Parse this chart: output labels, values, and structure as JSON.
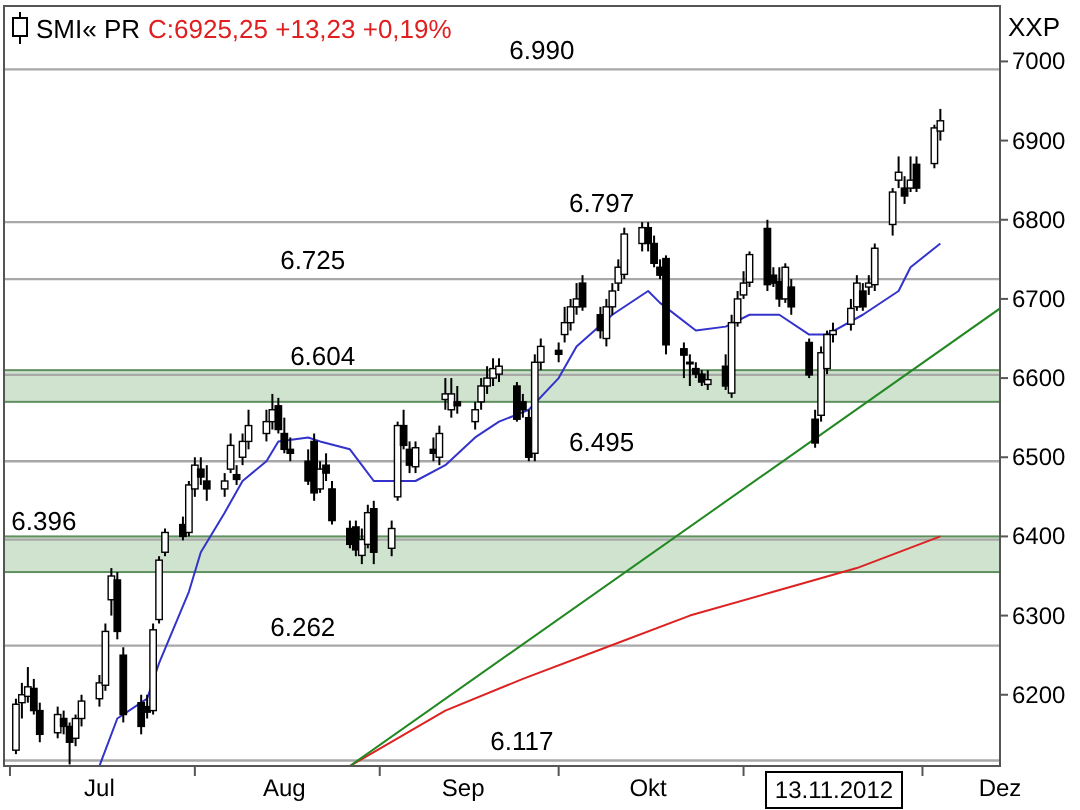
{
  "chart_data": {
    "type": "candlestick",
    "title": "SMI« PR",
    "subtitle": "C:6925,25 +13,23 +0,19%",
    "ylabel": "XXP",
    "xlim": [
      "2012-06-30",
      "2012-12-14"
    ],
    "xticks": [
      {
        "value": "2012-07-01",
        "label": null
      },
      {
        "value": "2012-07-16",
        "label": "Jul"
      },
      {
        "value": "2012-08-01",
        "label": null
      },
      {
        "value": "2012-08-16",
        "label": "Aug"
      },
      {
        "value": "2012-09-01",
        "label": null
      },
      {
        "value": "2012-09-15",
        "label": "Sep"
      },
      {
        "value": "2012-10-01",
        "label": null
      },
      {
        "value": "2012-10-16",
        "label": "Okt"
      },
      {
        "value": "2012-11-01",
        "label": null
      },
      {
        "value": "2012-12-01",
        "label": null
      },
      {
        "value": "2012-12-14",
        "label": "Dez"
      }
    ],
    "ylim": [
      6110,
      7070
    ],
    "yticks": [
      6200,
      6300,
      6400,
      6500,
      6600,
      6700,
      6800,
      6900,
      7000
    ],
    "x": [
      "2012-07-02",
      "2012-07-03",
      "2012-07-04",
      "2012-07-05",
      "2012-07-06",
      "2012-07-09",
      "2012-07-10",
      "2012-07-11",
      "2012-07-12",
      "2012-07-13",
      "2012-07-16",
      "2012-07-17",
      "2012-07-18",
      "2012-07-19",
      "2012-07-20",
      "2012-07-23",
      "2012-07-24",
      "2012-07-25",
      "2012-07-26",
      "2012-07-27",
      "2012-07-30",
      "2012-07-31",
      "2012-08-01",
      "2012-08-02",
      "2012-08-03",
      "2012-08-06",
      "2012-08-07",
      "2012-08-08",
      "2012-08-09",
      "2012-08-10",
      "2012-08-13",
      "2012-08-14",
      "2012-08-15",
      "2012-08-16",
      "2012-08-17",
      "2012-08-20",
      "2012-08-21",
      "2012-08-22",
      "2012-08-23",
      "2012-08-24",
      "2012-08-27",
      "2012-08-28",
      "2012-08-29",
      "2012-08-30",
      "2012-08-31",
      "2012-09-03",
      "2012-09-04",
      "2012-09-05",
      "2012-09-06",
      "2012-09-07",
      "2012-09-10",
      "2012-09-11",
      "2012-09-12",
      "2012-09-13",
      "2012-09-14",
      "2012-09-17",
      "2012-09-18",
      "2012-09-19",
      "2012-09-20",
      "2012-09-21",
      "2012-09-24",
      "2012-09-25",
      "2012-09-26",
      "2012-09-27",
      "2012-09-28",
      "2012-10-01",
      "2012-10-02",
      "2012-10-03",
      "2012-10-04",
      "2012-10-05",
      "2012-10-08",
      "2012-10-09",
      "2012-10-10",
      "2012-10-11",
      "2012-10-12",
      "2012-10-15",
      "2012-10-16",
      "2012-10-17",
      "2012-10-18",
      "2012-10-19",
      "2012-10-22",
      "2012-10-23",
      "2012-10-24",
      "2012-10-25",
      "2012-10-26",
      "2012-10-29",
      "2012-10-30",
      "2012-10-31",
      "2012-11-01",
      "2012-11-02",
      "2012-11-05",
      "2012-11-06",
      "2012-11-07",
      "2012-11-08",
      "2012-11-09",
      "2012-11-12",
      "2012-11-13",
      "2012-11-14",
      "2012-11-15",
      "2012-11-16",
      "2012-11-19",
      "2012-11-20",
      "2012-11-21",
      "2012-11-22",
      "2012-11-23",
      "2012-11-26",
      "2012-11-27",
      "2012-11-28",
      "2012-11-29",
      "2012-11-30",
      "2012-12-03",
      "2012-12-04"
    ],
    "ohlc": [
      [
        6130,
        6195,
        6125,
        6188
      ],
      [
        6190,
        6215,
        6170,
        6200
      ],
      [
        6198,
        6235,
        6190,
        6210
      ],
      [
        6208,
        6220,
        6175,
        6180
      ],
      [
        6180,
        6190,
        6140,
        6150
      ],
      [
        6152,
        6185,
        6145,
        6175
      ],
      [
        6170,
        6180,
        6150,
        6160
      ],
      [
        6160,
        6165,
        6112,
        6140
      ],
      [
        6145,
        6175,
        6135,
        6170
      ],
      [
        6170,
        6200,
        6160,
        6192
      ],
      [
        6195,
        6225,
        6185,
        6215
      ],
      [
        6212,
        6290,
        6205,
        6280
      ],
      [
        6320,
        6360,
        6300,
        6350
      ],
      [
        6345,
        6355,
        6270,
        6280
      ],
      [
        6250,
        6260,
        6165,
        6175
      ],
      [
        6190,
        6200,
        6150,
        6160
      ],
      [
        6185,
        6200,
        6170,
        6178
      ],
      [
        6180,
        6290,
        6175,
        6282
      ],
      [
        6295,
        6375,
        6290,
        6370
      ],
      [
        6380,
        6410,
        6375,
        6405
      ],
      [
        6415,
        6425,
        6395,
        6400
      ],
      [
        6405,
        6470,
        6400,
        6465
      ],
      [
        6460,
        6500,
        6450,
        6490
      ],
      [
        6485,
        6500,
        6465,
        6475
      ],
      [
        6470,
        6490,
        6445,
        6460
      ],
      [
        6460,
        6480,
        6450,
        6470
      ],
      [
        6485,
        6530,
        6480,
        6515
      ],
      [
        6478,
        6490,
        6465,
        6472
      ],
      [
        6500,
        6530,
        6490,
        6520
      ],
      [
        6520,
        6560,
        6510,
        6540
      ],
      [
        6530,
        6560,
        6520,
        6545
      ],
      [
        6545,
        6580,
        6535,
        6560
      ],
      [
        6565,
        6575,
        6530,
        6535
      ],
      [
        6530,
        6550,
        6505,
        6510
      ],
      [
        6510,
        6525,
        6495,
        6505
      ],
      [
        6495,
        6510,
        6465,
        6470
      ],
      [
        6520,
        6530,
        6445,
        6455
      ],
      [
        6460,
        6495,
        6455,
        6485
      ],
      [
        6490,
        6505,
        6470,
        6480
      ],
      [
        6460,
        6470,
        6415,
        6420
      ],
      [
        6410,
        6420,
        6385,
        6390
      ],
      [
        6412,
        6420,
        6375,
        6383
      ],
      [
        6376,
        6410,
        6365,
        6396
      ],
      [
        6390,
        6440,
        6385,
        6430
      ],
      [
        6435,
        6445,
        6365,
        6380
      ],
      [
        6385,
        6420,
        6375,
        6410
      ],
      [
        6450,
        6545,
        6445,
        6540
      ],
      [
        6540,
        6560,
        6510,
        6515
      ],
      [
        6510,
        6520,
        6480,
        6490
      ],
      [
        6488,
        6520,
        6480,
        6512
      ],
      [
        6510,
        6525,
        6495,
        6505
      ],
      [
        6500,
        6540,
        6490,
        6530
      ],
      [
        6573,
        6600,
        6560,
        6580
      ],
      [
        6560,
        6600,
        6550,
        6580
      ],
      [
        6570,
        6590,
        6555,
        6565
      ],
      [
        6545,
        6570,
        6535,
        6560
      ],
      [
        6570,
        6600,
        6560,
        6590
      ],
      [
        6590,
        6615,
        6580,
        6600
      ],
      [
        6600,
        6625,
        6590,
        6612
      ],
      [
        6605,
        6625,
        6595,
        6615
      ],
      [
        6590,
        6595,
        6545,
        6548
      ],
      [
        6570,
        6580,
        6550,
        6560
      ],
      [
        6550,
        6560,
        6495,
        6500
      ],
      [
        6505,
        6630,
        6495,
        6620
      ],
      [
        6620,
        6650,
        6610,
        6640
      ],
      [
        6635,
        6645,
        6620,
        6630
      ],
      [
        6655,
        6690,
        6645,
        6670
      ],
      [
        6670,
        6700,
        6660,
        6690
      ],
      [
        6690,
        6720,
        6680,
        6700
      ],
      [
        6720,
        6730,
        6685,
        6690
      ],
      [
        6680,
        6690,
        6650,
        6660
      ],
      [
        6650,
        6700,
        6640,
        6690
      ],
      [
        6690,
        6720,
        6680,
        6710
      ],
      [
        6720,
        6750,
        6710,
        6740
      ],
      [
        6731,
        6790,
        6725,
        6782
      ],
      [
        6770,
        6797,
        6760,
        6790
      ],
      [
        6790,
        6797,
        6760,
        6770
      ],
      [
        6770,
        6780,
        6740,
        6745
      ],
      [
        6740,
        6750,
        6725,
        6730
      ],
      [
        6751,
        6755,
        6630,
        6642
      ],
      [
        6637,
        6645,
        6600,
        6629
      ],
      [
        6620,
        6630,
        6590,
        6618
      ],
      [
        6612,
        6620,
        6600,
        6605
      ],
      [
        6605,
        6610,
        6590,
        6595
      ],
      [
        6592,
        6610,
        6585,
        6598
      ],
      [
        6615,
        6630,
        6585,
        6590
      ],
      [
        6581,
        6680,
        6575,
        6670
      ],
      [
        6670,
        6710,
        6665,
        6700
      ],
      [
        6705,
        6735,
        6700,
        6720
      ],
      [
        6721,
        6760,
        6715,
        6756
      ],
      [
        6789,
        6800,
        6710,
        6718
      ],
      [
        6730,
        6740,
        6715,
        6720
      ],
      [
        6722,
        6740,
        6690,
        6700
      ],
      [
        6700,
        6745,
        6695,
        6740
      ],
      [
        6715,
        6725,
        6680,
        6690
      ],
      [
        6645,
        6650,
        6600,
        6604
      ],
      [
        6548,
        6560,
        6512,
        6518
      ],
      [
        6553,
        6640,
        6545,
        6632
      ],
      [
        6612,
        6660,
        6605,
        6655
      ],
      [
        6655,
        6670,
        6645,
        6660
      ],
      [
        6668,
        6700,
        6660,
        6688
      ],
      [
        6690,
        6730,
        6685,
        6720
      ],
      [
        6710,
        6720,
        6685,
        6690
      ],
      [
        6715,
        6730,
        6705,
        6720
      ],
      [
        6718,
        6770,
        6710,
        6764
      ],
      [
        6794,
        6840,
        6780,
        6835
      ],
      [
        6850,
        6880,
        6840,
        6860
      ],
      [
        6840,
        6855,
        6820,
        6830
      ],
      [
        6840,
        6880,
        6835,
        6850
      ],
      [
        6870,
        6880,
        6835,
        6840
      ],
      [
        6871,
        6920,
        6865,
        6916
      ],
      [
        6912,
        6940,
        6900,
        6925
      ]
    ],
    "series": [
      {
        "type": "line",
        "color": "#3333cc",
        "x": [
          "2012-07-16",
          "2012-07-19",
          "2012-07-24",
          "2012-07-26",
          "2012-07-31",
          "2012-08-02",
          "2012-08-06",
          "2012-08-09",
          "2012-08-13",
          "2012-08-15",
          "2012-08-20",
          "2012-08-22",
          "2012-08-27",
          "2012-08-29",
          "2012-08-31",
          "2012-09-05",
          "2012-09-07",
          "2012-09-12",
          "2012-09-17",
          "2012-09-21",
          "2012-09-26",
          "2012-10-01",
          "2012-10-04",
          "2012-10-10",
          "2012-10-16",
          "2012-10-18",
          "2012-10-24",
          "2012-10-29",
          "2012-11-02",
          "2012-11-07",
          "2012-11-12",
          "2012-11-15",
          "2012-11-21",
          "2012-11-27",
          "2012-11-29",
          "2012-12-04"
        ],
        "values": [
          6110,
          6170,
          6195,
          6240,
          6330,
          6380,
          6430,
          6470,
          6495,
          6520,
          6525,
          6520,
          6510,
          6490,
          6470,
          6470,
          6470,
          6490,
          6525,
          6545,
          6560,
          6600,
          6640,
          6680,
          6710,
          6695,
          6660,
          6665,
          6680,
          6680,
          6655,
          6655,
          6680,
          6710,
          6740,
          6770
        ]
      },
      {
        "type": "line",
        "color": "#dd2222",
        "x": [
          "2012-08-27",
          "2012-09-12",
          "2012-09-25",
          "2012-10-09",
          "2012-10-23",
          "2012-11-06",
          "2012-11-20",
          "2012-12-04"
        ],
        "values": [
          6110,
          6180,
          6220,
          6260,
          6300,
          6330,
          6360,
          6400
        ]
      },
      {
        "type": "line",
        "color": "#228822",
        "x": [
          "2012-08-27",
          "2012-12-14"
        ],
        "values": [
          6110,
          6688
        ]
      }
    ],
    "ref_lines": [
      {
        "axis": "y",
        "value": 6990,
        "label": "6.990"
      },
      {
        "axis": "y",
        "value": 6797,
        "label": "6.797"
      },
      {
        "axis": "y",
        "value": 6725,
        "label": "6.725"
      },
      {
        "axis": "y",
        "value": 6604,
        "label": "6.604"
      },
      {
        "axis": "y",
        "value": 6495,
        "label": "6.495"
      },
      {
        "axis": "y",
        "value": 6396,
        "label": "6.396"
      },
      {
        "axis": "y",
        "value": 6262,
        "label": "6.262"
      },
      {
        "axis": "y",
        "value": 6117,
        "label": "6.117"
      }
    ],
    "bands": [
      {
        "axis": "y",
        "from": 6355,
        "to": 6400,
        "color": "#cfe3cf"
      },
      {
        "axis": "y",
        "from": 6570,
        "to": 6610,
        "color": "#cfe3cf"
      }
    ],
    "annotations": [
      "13.11.2012"
    ]
  }
}
